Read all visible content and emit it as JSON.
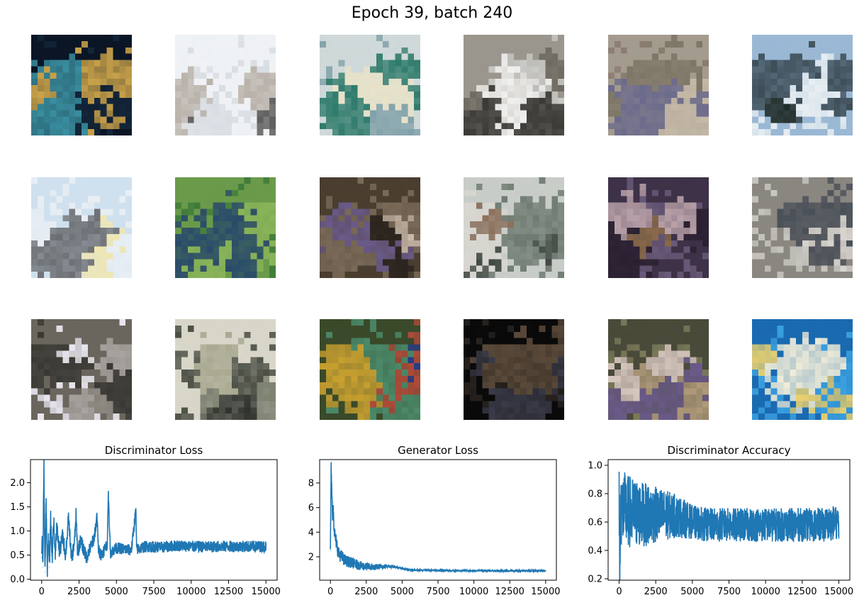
{
  "figure": {
    "suptitle": "Epoch 39, batch 240",
    "accent_color": "#1f77b4"
  },
  "samples": {
    "rows": 3,
    "cols": 6,
    "tiles": [
      {
        "palette": [
          "#0b1626",
          "#14263a",
          "#6a8a3a",
          "#c9a24a",
          "#3a8fa0"
        ]
      },
      {
        "palette": [
          "#eef1f4",
          "#d8dde2",
          "#2e2e2c",
          "#5a5a58",
          "#b9b2aa"
        ]
      },
      {
        "palette": [
          "#cfd8d8",
          "#7fa0a8",
          "#2d7a6a",
          "#38b4b0",
          "#e8e2c8"
        ]
      },
      {
        "palette": [
          "#9a968e",
          "#c9c9c6",
          "#f0f0ee",
          "#6e6a62",
          "#3b3a36"
        ]
      },
      {
        "palette": [
          "#a39b8e",
          "#8a7a6e",
          "#6b6a8c",
          "#c4b8a6",
          "#7d7565"
        ]
      },
      {
        "palette": [
          "#9ab8d4",
          "#e8eef2",
          "#3e4e58",
          "#1e2a26",
          "#c8d6de"
        ]
      },
      {
        "palette": [
          "#cfe0ee",
          "#e8eef4",
          "#1a1a1a",
          "#6c6e72",
          "#f0e6b0"
        ]
      },
      {
        "palette": [
          "#6a9a4a",
          "#3e7a3a",
          "#2a4a6a",
          "#c8d0e8",
          "#8ab45a"
        ]
      },
      {
        "palette": [
          "#4a3e30",
          "#7a6a58",
          "#6a5a8a",
          "#c8b8a8",
          "#2a241e"
        ]
      },
      {
        "palette": [
          "#c8ccc8",
          "#6e7a70",
          "#3e4640",
          "#d8d6d0",
          "#8a6e5a"
        ]
      },
      {
        "palette": [
          "#3e3248",
          "#6a5a7a",
          "#8a6a4a",
          "#b8a0a8",
          "#2a2030"
        ]
      },
      {
        "palette": [
          "#8a8680",
          "#c8c6c0",
          "#4a5058",
          "#6e6a66",
          "#d8d4ce"
        ]
      },
      {
        "palette": [
          "#6a665e",
          "#e8e6ee",
          "#3a3834",
          "#a8a4a0",
          "#8e8a82"
        ]
      },
      {
        "palette": [
          "#d8d6c8",
          "#4a4e44",
          "#7a7e6e",
          "#2e322c",
          "#a8a890"
        ]
      },
      {
        "palette": [
          "#3a4a2a",
          "#4a8a6a",
          "#2a3a8a",
          "#c8a030",
          "#b04a3a"
        ]
      },
      {
        "palette": [
          "#0a0a0a",
          "#2a2420",
          "#5a4a3a",
          "#8a6a5a",
          "#3a3a48"
        ]
      },
      {
        "palette": [
          "#4a4a3a",
          "#7a7a5a",
          "#d8c8c0",
          "#6a5a8a",
          "#b09a7a"
        ]
      },
      {
        "palette": [
          "#1a6ab0",
          "#3aa0e0",
          "#f0ecd8",
          "#e8d070",
          "#0a3a6a"
        ]
      }
    ]
  },
  "chart_data": [
    {
      "type": "line",
      "title": "Discriminator Loss",
      "xlim": [
        -750,
        15750
      ],
      "ylim": [
        -0.02,
        2.48
      ],
      "xticks": [
        0,
        2500,
        5000,
        7500,
        10000,
        12500,
        15000
      ],
      "xtick_labels": [
        "0",
        "2500",
        "5000",
        "7500",
        "10000",
        "12500",
        "15000"
      ],
      "yticks": [
        0.0,
        0.5,
        1.0,
        1.5,
        2.0
      ],
      "ytick_labels": [
        "0.0",
        "0.5",
        "1.0",
        "1.5",
        "2.0"
      ],
      "series": [
        {
          "x": [
            0,
            30,
            80,
            150,
            220,
            300,
            380,
            450,
            520,
            600,
            700,
            800,
            900,
            1000,
            1200,
            1400,
            1600,
            1800,
            2000,
            2200,
            2300,
            2400,
            2600,
            3000,
            3500,
            3700,
            3800,
            4000,
            4400,
            4450,
            4600,
            5000,
            6000,
            6300,
            6350,
            7000,
            8000,
            9000,
            10000,
            11000,
            12000,
            13000,
            14000,
            15000
          ],
          "y": [
            0.45,
            0.9,
            0.25,
            2.37,
            0.15,
            1.6,
            0.2,
            0.9,
            0.25,
            1.25,
            0.4,
            1.27,
            0.5,
            1.1,
            0.55,
            0.9,
            0.5,
            1.28,
            0.4,
            0.8,
            1.33,
            0.55,
            0.8,
            0.45,
            0.85,
            1.28,
            0.6,
            0.5,
            0.75,
            1.8,
            0.55,
            0.65,
            0.6,
            1.45,
            0.62,
            0.68,
            0.66,
            0.7,
            0.68,
            0.67,
            0.68,
            0.68,
            0.68,
            0.68
          ],
          "band": [
            0.18,
            0.12
          ],
          "color": "#1f77b4"
        }
      ]
    },
    {
      "type": "line",
      "title": "Generator Loss",
      "xlim": [
        -750,
        15750
      ],
      "ylim": [
        0.1,
        9.9
      ],
      "xticks": [
        0,
        2500,
        5000,
        7500,
        10000,
        12500,
        15000
      ],
      "xtick_labels": [
        "0",
        "2500",
        "5000",
        "7500",
        "10000",
        "12500",
        "15000"
      ],
      "yticks": [
        2,
        4,
        6,
        8
      ],
      "ytick_labels": [
        "2",
        "4",
        "6",
        "8"
      ],
      "series": [
        {
          "x": [
            0,
            50,
            100,
            150,
            200,
            250,
            300,
            400,
            500,
            600,
            800,
            1000,
            1500,
            2000,
            2500,
            3000,
            3500,
            4000,
            4500,
            5000,
            5500,
            6000,
            7000,
            8000,
            9000,
            10000,
            11000,
            12000,
            13000,
            14000,
            15000
          ],
          "y": [
            2.5,
            9.5,
            7.0,
            5.5,
            6.4,
            4.5,
            3.8,
            3.2,
            2.6,
            2.2,
            2.0,
            1.7,
            1.5,
            1.3,
            1.2,
            1.15,
            1.2,
            1.25,
            1.2,
            1.05,
            0.95,
            0.92,
            0.9,
            0.88,
            0.88,
            0.87,
            0.87,
            0.86,
            0.86,
            0.86,
            0.86
          ],
          "band": [
            0.6,
            0.05
          ],
          "color": "#1f77b4"
        }
      ]
    },
    {
      "type": "line",
      "title": "Discriminator Accuracy",
      "xlim": [
        -750,
        15750
      ],
      "ylim": [
        0.19,
        1.04
      ],
      "xticks": [
        0,
        2500,
        5000,
        7500,
        10000,
        12500,
        15000
      ],
      "xtick_labels": [
        "0",
        "2500",
        "5000",
        "7500",
        "10000",
        "12500",
        "15000"
      ],
      "yticks": [
        0.2,
        0.4,
        0.6,
        0.8,
        1.0
      ],
      "ytick_labels": [
        "0.2",
        "0.4",
        "0.6",
        "0.8",
        "1.0"
      ],
      "series": [
        {
          "x": [
            0,
            50,
            100,
            500,
            1000,
            2000,
            3000,
            4000,
            5000,
            6000,
            7000,
            8000,
            9000,
            10000,
            11000,
            12000,
            13000,
            14000,
            15000
          ],
          "y": [
            0.7,
            0.24,
            0.7,
            0.68,
            0.66,
            0.65,
            0.65,
            0.64,
            0.6,
            0.58,
            0.58,
            0.58,
            0.58,
            0.58,
            0.58,
            0.58,
            0.58,
            0.58,
            0.6
          ],
          "band": [
            0.28,
            0.12
          ],
          "color": "#1f77b4"
        }
      ]
    }
  ]
}
